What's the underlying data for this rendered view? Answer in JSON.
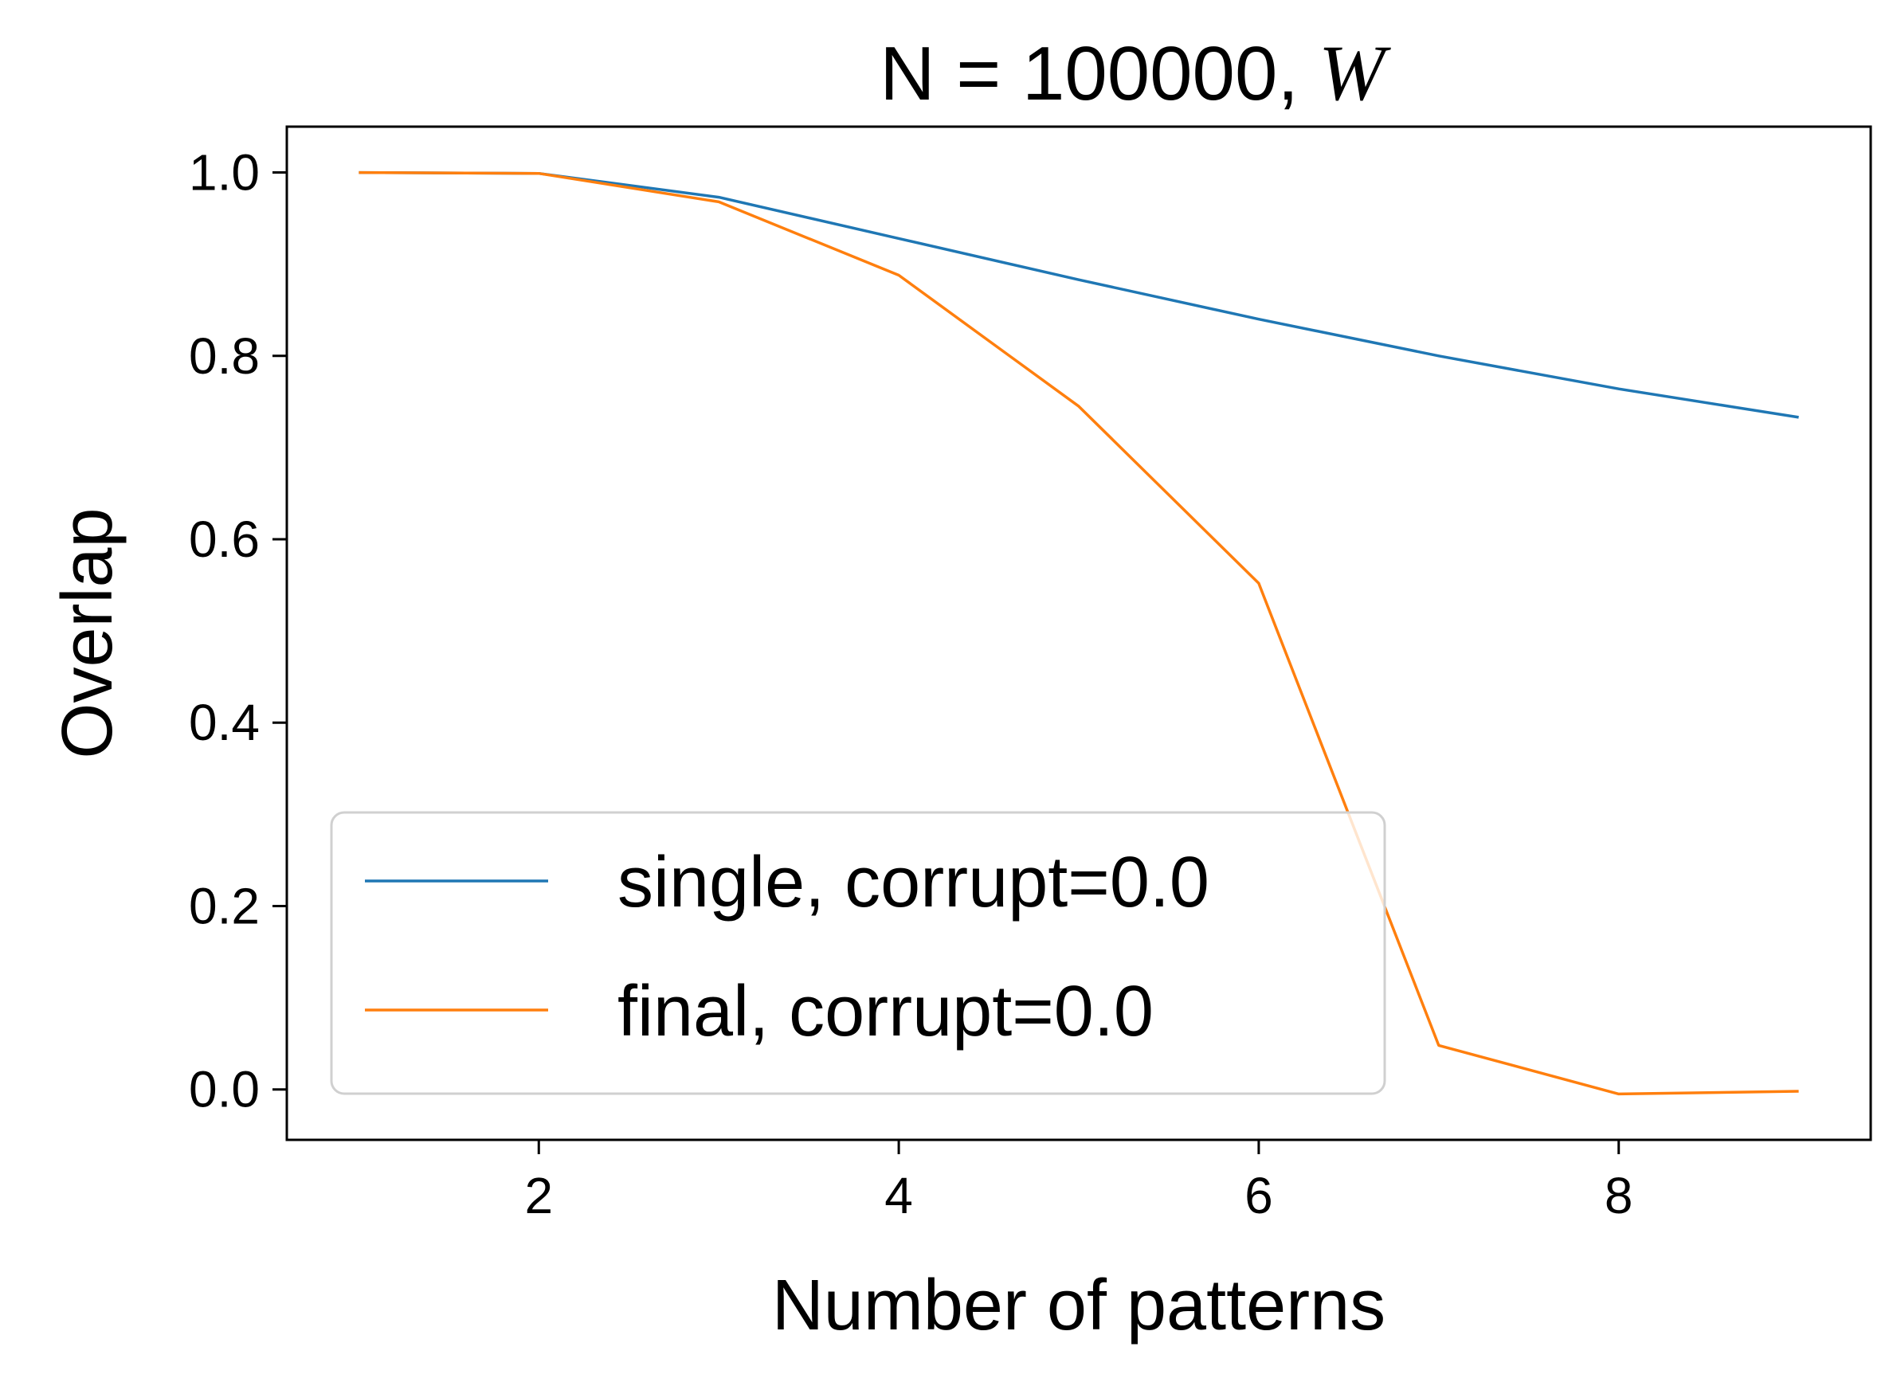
{
  "chart_data": {
    "type": "line",
    "title": "N = 100000,",
    "title_math": "W",
    "xlabel": "Number of patterns",
    "ylabel": "Overlap",
    "xlim": [
      0.6,
      9.4
    ],
    "ylim": [
      -0.055,
      1.05
    ],
    "xticks": [
      2,
      4,
      6,
      8
    ],
    "xtick_labels": [
      "2",
      "4",
      "6",
      "8"
    ],
    "yticks": [
      0.0,
      0.2,
      0.4,
      0.6,
      0.8,
      1.0
    ],
    "ytick_labels": [
      "0.0",
      "0.2",
      "0.4",
      "0.6",
      "0.8",
      "1.0"
    ],
    "grid": false,
    "legend_position": "lower-left",
    "x": [
      1,
      2,
      3,
      4,
      5,
      6,
      7,
      8,
      9
    ],
    "series": [
      {
        "name": "single, corrupt=0.0",
        "color": "#1f77b4",
        "values": [
          1.0,
          0.999,
          0.973,
          0.928,
          0.883,
          0.84,
          0.8,
          0.764,
          0.733
        ]
      },
      {
        "name": "final, corrupt=0.0",
        "color": "#ff7f0e",
        "values": [
          1.0,
          0.999,
          0.968,
          0.888,
          0.745,
          0.552,
          0.048,
          -0.005,
          -0.002
        ]
      }
    ]
  }
}
